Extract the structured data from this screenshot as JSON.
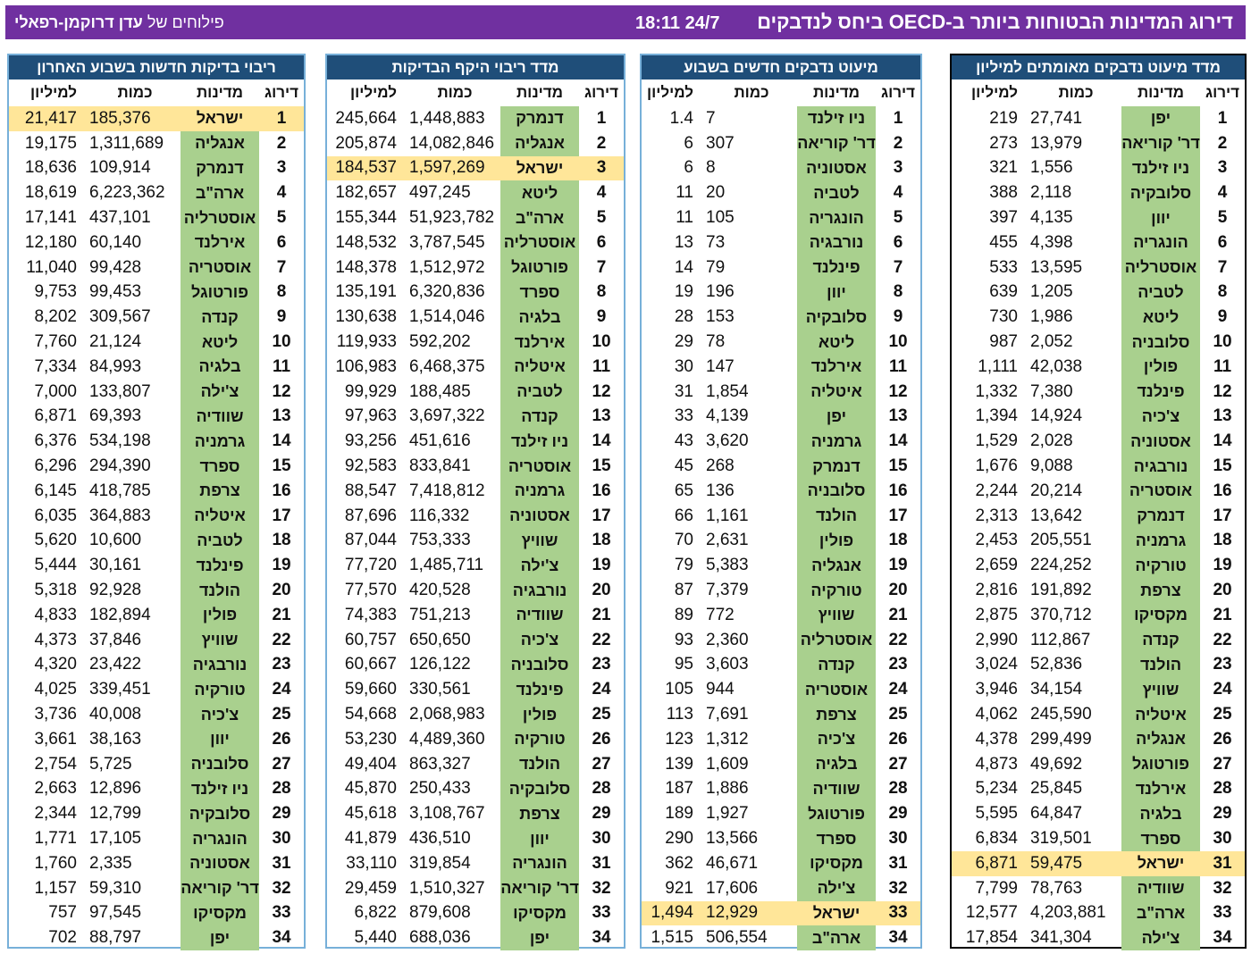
{
  "header": {
    "title": "דירוג המדינות הבטוחות ביותר ב-OECD ביחס לנדבקים",
    "datetime": "18:11 24/7",
    "credit_prefix": "פילוחים של",
    "credit_name": "עדן דרוקמן-רפאלי"
  },
  "columns": {
    "rank": "דירוג",
    "country": "מדינות",
    "qty": "כמות",
    "per_million": "למיליון"
  },
  "highlight_country": "ישראל",
  "colors": {
    "header_bg": "#7030a0",
    "panel_title_bg": "#1f4e79",
    "country_bg": "#a9d08e",
    "highlight": "#ffe699"
  },
  "panels": [
    {
      "title": "מדד מיעוט נדבקים מאומתים למיליון",
      "rows": [
        [
          "1",
          "יפן",
          "27,741",
          "219"
        ],
        [
          "2",
          "דר' קוריאה",
          "13,979",
          "273"
        ],
        [
          "3",
          "ניו זילנד",
          "1,556",
          "321"
        ],
        [
          "4",
          "סלובקיה",
          "2,118",
          "388"
        ],
        [
          "5",
          "יוון",
          "4,135",
          "397"
        ],
        [
          "6",
          "הונגריה",
          "4,398",
          "455"
        ],
        [
          "7",
          "אוסטרליה",
          "13,595",
          "533"
        ],
        [
          "8",
          "לטביה",
          "1,205",
          "639"
        ],
        [
          "9",
          "ליטא",
          "1,986",
          "730"
        ],
        [
          "10",
          "סלובניה",
          "2,052",
          "987"
        ],
        [
          "11",
          "פולין",
          "42,038",
          "1,111"
        ],
        [
          "12",
          "פינלנד",
          "7,380",
          "1,332"
        ],
        [
          "13",
          "צ'כיה",
          "14,924",
          "1,394"
        ],
        [
          "14",
          "אסטוניה",
          "2,028",
          "1,529"
        ],
        [
          "15",
          "נורבגיה",
          "9,088",
          "1,676"
        ],
        [
          "16",
          "אוסטריה",
          "20,214",
          "2,244"
        ],
        [
          "17",
          "דנמרק",
          "13,642",
          "2,313"
        ],
        [
          "18",
          "גרמניה",
          "205,551",
          "2,453"
        ],
        [
          "19",
          "טורקיה",
          "224,252",
          "2,659"
        ],
        [
          "20",
          "צרפת",
          "191,892",
          "2,816"
        ],
        [
          "21",
          "מקסיקו",
          "370,712",
          "2,875"
        ],
        [
          "22",
          "קנדה",
          "112,867",
          "2,990"
        ],
        [
          "23",
          "הולנד",
          "52,836",
          "3,024"
        ],
        [
          "24",
          "שוויץ",
          "34,154",
          "3,946"
        ],
        [
          "25",
          "איטליה",
          "245,590",
          "4,062"
        ],
        [
          "26",
          "אנגליה",
          "299,499",
          "4,378"
        ],
        [
          "27",
          "פורטוגל",
          "49,692",
          "4,873"
        ],
        [
          "28",
          "אירלנד",
          "25,845",
          "5,234"
        ],
        [
          "29",
          "בלגיה",
          "64,847",
          "5,595"
        ],
        [
          "30",
          "ספרד",
          "319,501",
          "6,834"
        ],
        [
          "31",
          "ישראל",
          "59,475",
          "6,871"
        ],
        [
          "32",
          "שוודיה",
          "78,763",
          "7,799"
        ],
        [
          "33",
          "ארה\"ב",
          "4,203,881",
          "12,577"
        ],
        [
          "34",
          "צ'ילה",
          "341,304",
          "17,854"
        ]
      ]
    },
    {
      "title": "מיעוט נדבקים חדשים בשבוע",
      "rows": [
        [
          "1",
          "ניו זילנד",
          "7",
          "1.4"
        ],
        [
          "2",
          "דר' קוריאה",
          "307",
          "6"
        ],
        [
          "3",
          "אסטוניה",
          "8",
          "6"
        ],
        [
          "4",
          "לטביה",
          "20",
          "11"
        ],
        [
          "5",
          "הונגריה",
          "105",
          "11"
        ],
        [
          "6",
          "נורבגיה",
          "73",
          "13"
        ],
        [
          "7",
          "פינלנד",
          "79",
          "14"
        ],
        [
          "8",
          "יוון",
          "196",
          "19"
        ],
        [
          "9",
          "סלובקיה",
          "153",
          "28"
        ],
        [
          "10",
          "ליטא",
          "78",
          "29"
        ],
        [
          "11",
          "אירלנד",
          "147",
          "30"
        ],
        [
          "12",
          "איטליה",
          "1,854",
          "31"
        ],
        [
          "13",
          "יפן",
          "4,139",
          "33"
        ],
        [
          "14",
          "גרמניה",
          "3,620",
          "43"
        ],
        [
          "15",
          "דנמרק",
          "268",
          "45"
        ],
        [
          "16",
          "סלובניה",
          "136",
          "65"
        ],
        [
          "17",
          "הולנד",
          "1,161",
          "66"
        ],
        [
          "18",
          "פולין",
          "2,631",
          "70"
        ],
        [
          "19",
          "אנגליה",
          "5,383",
          "79"
        ],
        [
          "20",
          "טורקיה",
          "7,379",
          "87"
        ],
        [
          "21",
          "שוויץ",
          "772",
          "89"
        ],
        [
          "22",
          "אוסטרליה",
          "2,360",
          "93"
        ],
        [
          "23",
          "קנדה",
          "3,603",
          "95"
        ],
        [
          "24",
          "אוסטריה",
          "944",
          "105"
        ],
        [
          "25",
          "צרפת",
          "7,691",
          "113"
        ],
        [
          "26",
          "צ'כיה",
          "1,312",
          "123"
        ],
        [
          "27",
          "בלגיה",
          "1,609",
          "139"
        ],
        [
          "28",
          "שוודיה",
          "1,886",
          "187"
        ],
        [
          "29",
          "פורטוגל",
          "1,927",
          "189"
        ],
        [
          "30",
          "ספרד",
          "13,566",
          "290"
        ],
        [
          "31",
          "מקסיקו",
          "46,671",
          "362"
        ],
        [
          "32",
          "צ'ילה",
          "17,606",
          "921"
        ],
        [
          "33",
          "ישראל",
          "12,929",
          "1,494"
        ],
        [
          "34",
          "ארה\"ב",
          "506,554",
          "1,515"
        ]
      ]
    },
    {
      "title": "מדד ריבוי היקף הבדיקות",
      "rows": [
        [
          "1",
          "דנמרק",
          "1,448,883",
          "245,664"
        ],
        [
          "2",
          "אנגליה",
          "14,082,846",
          "205,874"
        ],
        [
          "3",
          "ישראל",
          "1,597,269",
          "184,537"
        ],
        [
          "4",
          "ליטא",
          "497,245",
          "182,657"
        ],
        [
          "5",
          "ארה\"ב",
          "51,923,782",
          "155,344"
        ],
        [
          "6",
          "אוסטרליה",
          "3,787,545",
          "148,532"
        ],
        [
          "7",
          "פורטוגל",
          "1,512,972",
          "148,378"
        ],
        [
          "8",
          "ספרד",
          "6,320,836",
          "135,191"
        ],
        [
          "9",
          "בלגיה",
          "1,514,046",
          "130,638"
        ],
        [
          "10",
          "אירלנד",
          "592,202",
          "119,933"
        ],
        [
          "11",
          "איטליה",
          "6,468,375",
          "106,983"
        ],
        [
          "12",
          "לטביה",
          "188,485",
          "99,929"
        ],
        [
          "13",
          "קנדה",
          "3,697,322",
          "97,963"
        ],
        [
          "14",
          "ניו זילנד",
          "451,616",
          "93,256"
        ],
        [
          "15",
          "אוסטריה",
          "833,841",
          "92,583"
        ],
        [
          "16",
          "גרמניה",
          "7,418,812",
          "88,547"
        ],
        [
          "17",
          "אסטוניה",
          "116,332",
          "87,696"
        ],
        [
          "18",
          "שוויץ",
          "753,333",
          "87,044"
        ],
        [
          "19",
          "צ'ילה",
          "1,485,711",
          "77,720"
        ],
        [
          "20",
          "נורבגיה",
          "420,528",
          "77,570"
        ],
        [
          "21",
          "שוודיה",
          "751,213",
          "74,383"
        ],
        [
          "22",
          "צ'כיה",
          "650,650",
          "60,757"
        ],
        [
          "23",
          "סלובניה",
          "126,122",
          "60,667"
        ],
        [
          "24",
          "פינלנד",
          "330,561",
          "59,660"
        ],
        [
          "25",
          "פולין",
          "2,068,983",
          "54,668"
        ],
        [
          "26",
          "טורקיה",
          "4,489,360",
          "53,230"
        ],
        [
          "27",
          "הולנד",
          "863,327",
          "49,404"
        ],
        [
          "28",
          "סלובקיה",
          "250,433",
          "45,870"
        ],
        [
          "29",
          "צרפת",
          "3,108,767",
          "45,618"
        ],
        [
          "30",
          "יוון",
          "436,510",
          "41,879"
        ],
        [
          "31",
          "הונגריה",
          "319,854",
          "33,110"
        ],
        [
          "32",
          "דר' קוריאה",
          "1,510,327",
          "29,459"
        ],
        [
          "33",
          "מקסיקו",
          "879,608",
          "6,822"
        ],
        [
          "34",
          "יפן",
          "688,036",
          "5,440"
        ]
      ]
    },
    {
      "title": "ריבוי בדיקות חדשות בשבוע האחרון",
      "rows": [
        [
          "1",
          "ישראל",
          "185,376",
          "21,417"
        ],
        [
          "2",
          "אנגליה",
          "1,311,689",
          "19,175"
        ],
        [
          "3",
          "דנמרק",
          "109,914",
          "18,636"
        ],
        [
          "4",
          "ארה\"ב",
          "6,223,362",
          "18,619"
        ],
        [
          "5",
          "אוסטרליה",
          "437,101",
          "17,141"
        ],
        [
          "6",
          "אירלנד",
          "60,140",
          "12,180"
        ],
        [
          "7",
          "אוסטריה",
          "99,428",
          "11,040"
        ],
        [
          "8",
          "פורטוגל",
          "99,453",
          "9,753"
        ],
        [
          "9",
          "קנדה",
          "309,567",
          "8,202"
        ],
        [
          "10",
          "ליטא",
          "21,124",
          "7,760"
        ],
        [
          "11",
          "בלגיה",
          "84,993",
          "7,334"
        ],
        [
          "12",
          "צ'ילה",
          "133,807",
          "7,000"
        ],
        [
          "13",
          "שוודיה",
          "69,393",
          "6,871"
        ],
        [
          "14",
          "גרמניה",
          "534,198",
          "6,376"
        ],
        [
          "15",
          "ספרד",
          "294,390",
          "6,296"
        ],
        [
          "16",
          "צרפת",
          "418,785",
          "6,145"
        ],
        [
          "17",
          "איטליה",
          "364,883",
          "6,035"
        ],
        [
          "18",
          "לטביה",
          "10,600",
          "5,620"
        ],
        [
          "19",
          "פינלנד",
          "30,161",
          "5,444"
        ],
        [
          "20",
          "הולנד",
          "92,928",
          "5,318"
        ],
        [
          "21",
          "פולין",
          "182,894",
          "4,833"
        ],
        [
          "22",
          "שוויץ",
          "37,846",
          "4,373"
        ],
        [
          "23",
          "נורבגיה",
          "23,422",
          "4,320"
        ],
        [
          "24",
          "טורקיה",
          "339,451",
          "4,025"
        ],
        [
          "25",
          "צ'כיה",
          "40,008",
          "3,736"
        ],
        [
          "26",
          "יוון",
          "38,163",
          "3,661"
        ],
        [
          "27",
          "סלובניה",
          "5,725",
          "2,754"
        ],
        [
          "28",
          "ניו זילנד",
          "12,896",
          "2,663"
        ],
        [
          "29",
          "סלובקיה",
          "12,799",
          "2,344"
        ],
        [
          "30",
          "הונגריה",
          "17,105",
          "1,771"
        ],
        [
          "31",
          "אסטוניה",
          "2,335",
          "1,760"
        ],
        [
          "32",
          "דר' קוריאה",
          "59,310",
          "1,157"
        ],
        [
          "33",
          "מקסיקו",
          "97,545",
          "757"
        ],
        [
          "34",
          "יפן",
          "88,797",
          "702"
        ]
      ]
    }
  ]
}
